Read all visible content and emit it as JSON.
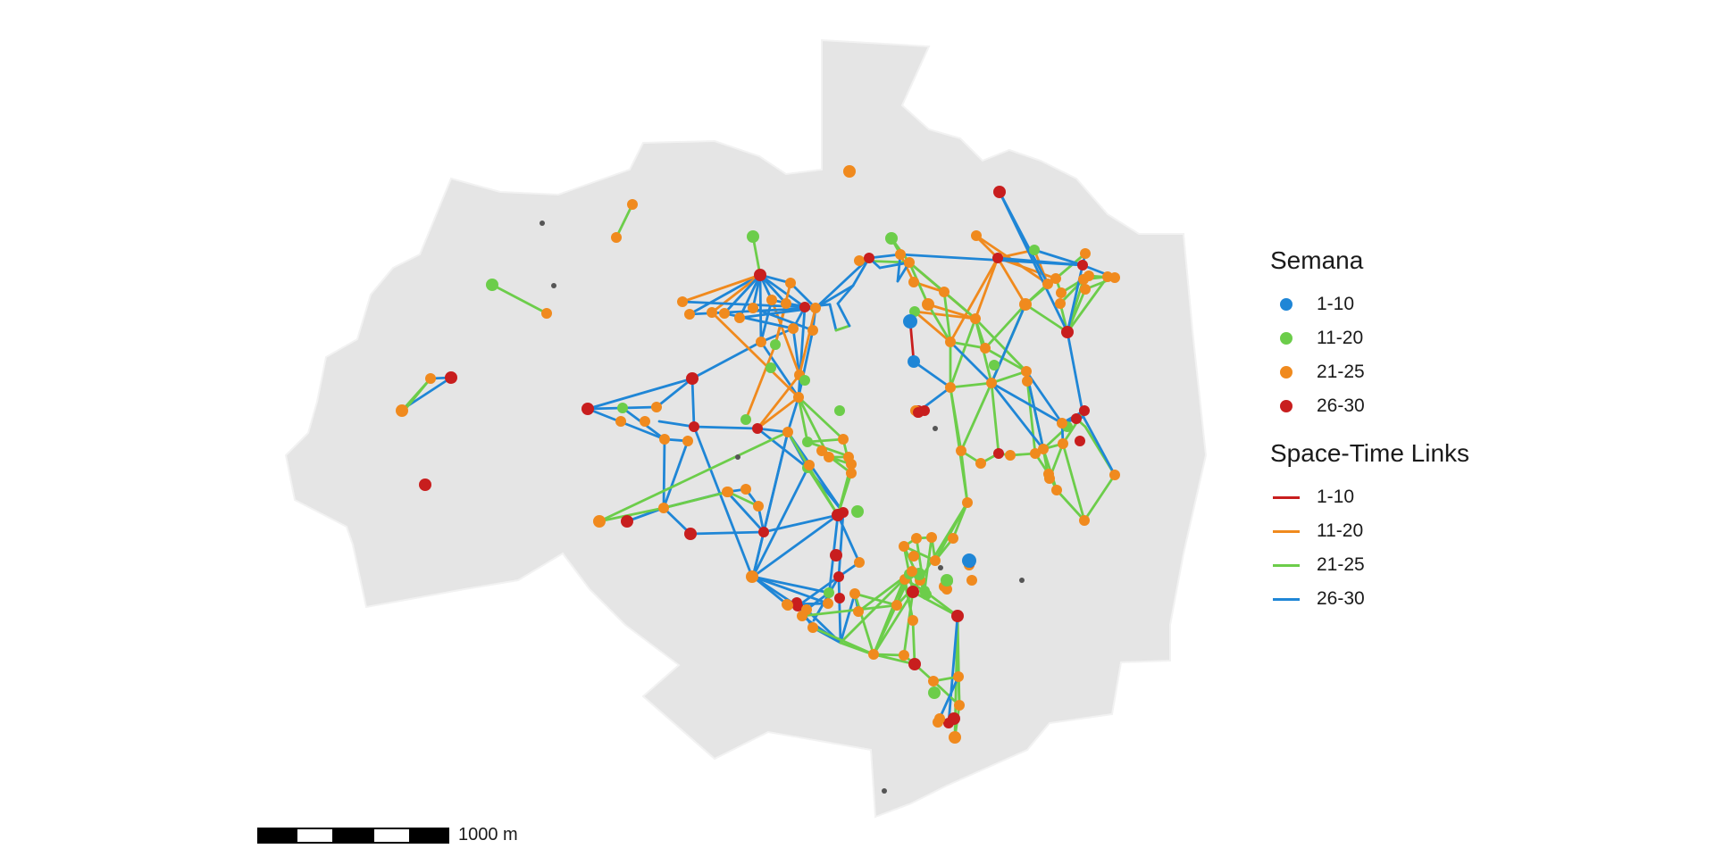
{
  "colors": {
    "area_fill": "#e5e5e5",
    "area_stroke": "#f2f2f2",
    "blue": "#1f86d6",
    "green": "#6ccd4a",
    "orange": "#f08a1e",
    "red": "#c81e1e",
    "no_case_dot": "#555555"
  },
  "legend": {
    "semana_title": "Semana",
    "semana_items": [
      {
        "label": "1-10",
        "color": "#1f86d6"
      },
      {
        "label": "11-20",
        "color": "#6ccd4a"
      },
      {
        "label": "21-25",
        "color": "#f08a1e"
      },
      {
        "label": "26-30",
        "color": "#c81e1e"
      }
    ],
    "links_title": "Space-Time Links",
    "link_items": [
      {
        "label": "1-10",
        "color": "#c81e1e"
      },
      {
        "label": "11-20",
        "color": "#f08a1e"
      },
      {
        "label": "21-25",
        "color": "#6ccd4a"
      },
      {
        "label": "26-30",
        "color": "#1f86d6"
      }
    ]
  },
  "scalebar": {
    "label": "1000 m",
    "segment_fills": [
      "#000000",
      "#ffffff",
      "#000000",
      "#ffffff",
      "#000000"
    ]
  }
}
